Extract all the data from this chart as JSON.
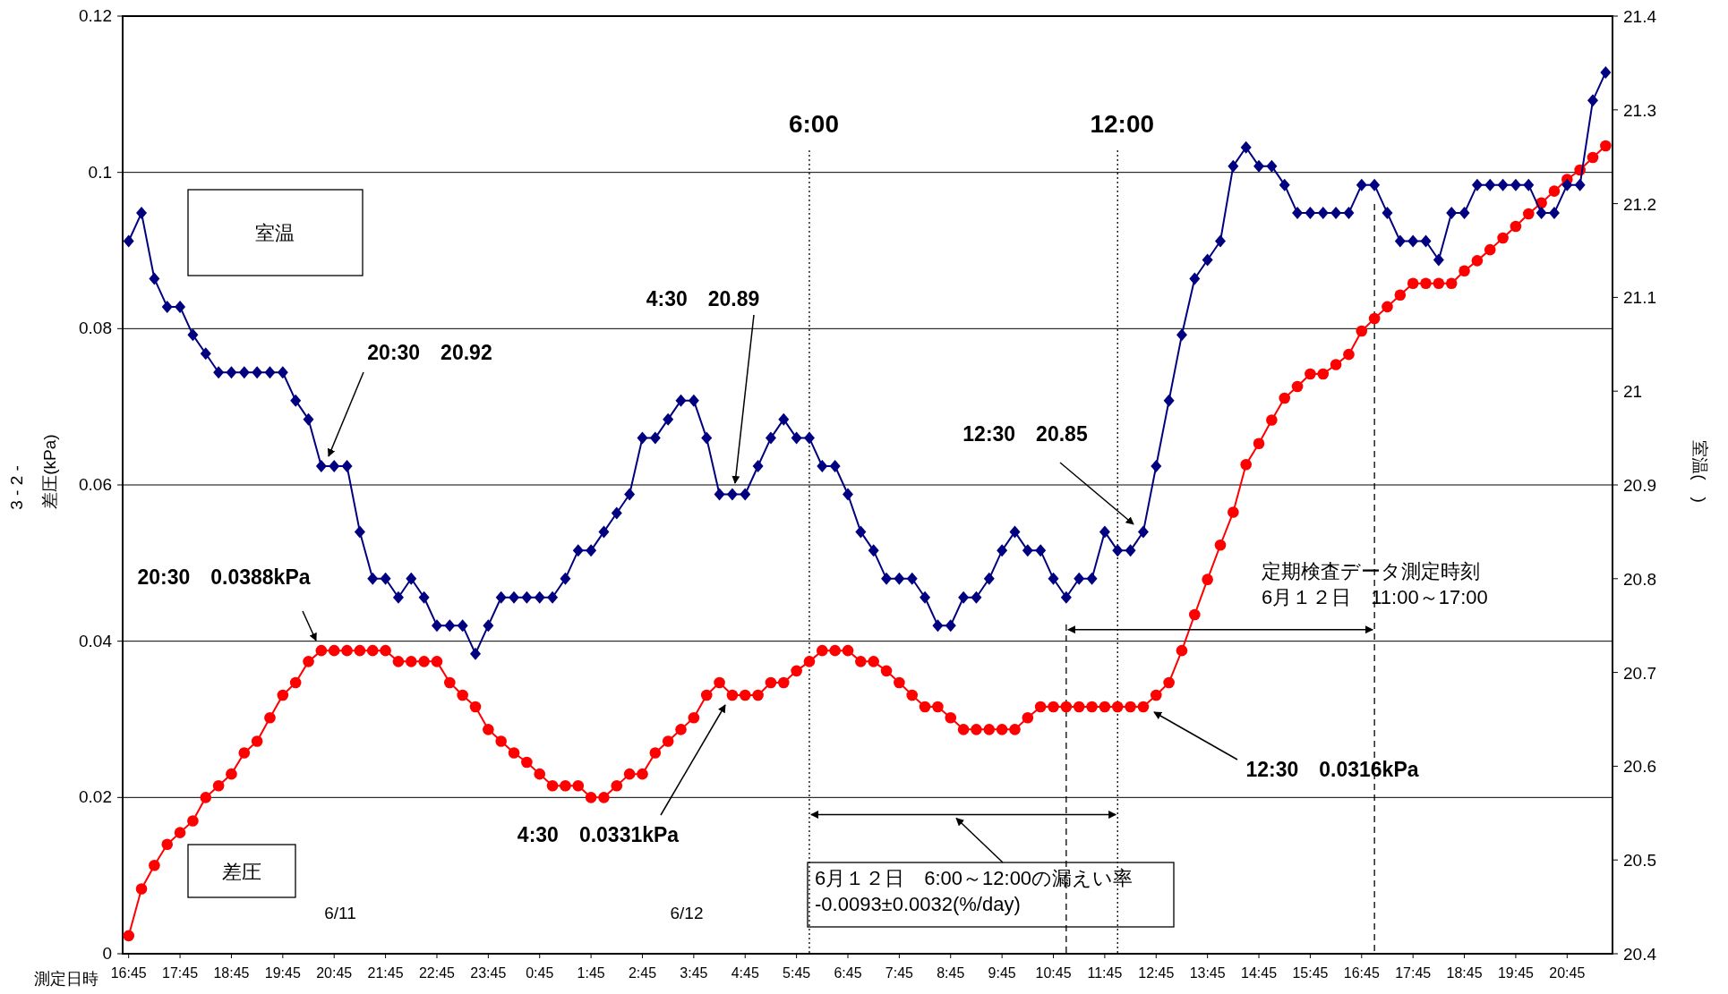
{
  "chart_data": {
    "type": "line",
    "xlabel": "測定日時",
    "ylabel": "差圧(kPa)",
    "y2label": "室温(　)",
    "x": [
      "--06-11T16:45",
      "--06-11T17:00",
      "--06-11T17:15",
      "--06-11T17:30",
      "--06-11T17:45",
      "--06-11T18:00",
      "--06-11T18:15",
      "--06-11T18:30",
      "--06-11T18:45",
      "--06-11T19:00",
      "--06-11T19:15",
      "--06-11T19:30",
      "--06-11T19:45",
      "--06-11T20:00",
      "--06-11T20:15",
      "--06-11T20:30",
      "--06-11T20:45",
      "--06-11T21:00",
      "--06-11T21:15",
      "--06-11T21:30",
      "--06-11T21:45",
      "--06-11T22:00",
      "--06-11T22:15",
      "--06-11T22:30",
      "--06-11T22:45",
      "--06-11T23:00",
      "--06-11T23:15",
      "--06-11T23:30",
      "--06-11T23:45",
      "--06-12T00:00",
      "--06-12T00:15",
      "--06-12T00:30",
      "--06-12T00:45",
      "--06-12T01:00",
      "--06-12T01:15",
      "--06-12T01:30",
      "--06-12T01:45",
      "--06-12T02:00",
      "--06-12T02:15",
      "--06-12T02:30",
      "--06-12T02:45",
      "--06-12T03:00",
      "--06-12T03:15",
      "--06-12T03:30",
      "--06-12T03:45",
      "--06-12T04:00",
      "--06-12T04:15",
      "--06-12T04:30",
      "--06-12T04:45",
      "--06-12T05:00",
      "--06-12T05:15",
      "--06-12T05:30",
      "--06-12T05:45",
      "--06-12T06:00",
      "--06-12T06:15",
      "--06-12T06:30",
      "--06-12T06:45",
      "--06-12T07:00",
      "--06-12T07:15",
      "--06-12T07:30",
      "--06-12T07:45",
      "--06-12T08:00",
      "--06-12T08:15",
      "--06-12T08:30",
      "--06-12T08:45",
      "--06-12T09:00",
      "--06-12T09:15",
      "--06-12T09:30",
      "--06-12T09:45",
      "--06-12T10:00",
      "--06-12T10:15",
      "--06-12T10:30",
      "--06-12T10:45",
      "--06-12T11:00",
      "--06-12T11:15",
      "--06-12T11:30",
      "--06-12T11:45",
      "--06-12T12:00",
      "--06-12T12:15",
      "--06-12T12:30",
      "--06-12T12:45",
      "--06-12T13:00",
      "--06-12T13:15",
      "--06-12T13:30",
      "--06-12T13:45",
      "--06-12T14:00",
      "--06-12T14:15",
      "--06-12T14:30",
      "--06-12T14:45",
      "--06-12T15:00",
      "--06-12T15:15",
      "--06-12T15:30",
      "--06-12T15:45",
      "--06-12T16:00",
      "--06-12T16:15",
      "--06-12T16:30",
      "--06-12T16:45",
      "--06-12T17:00",
      "--06-12T17:15",
      "--06-12T17:30",
      "--06-12T17:45",
      "--06-12T18:00",
      "--06-12T18:15",
      "--06-12T18:30",
      "--06-12T18:45",
      "--06-12T19:00",
      "--06-12T19:15",
      "--06-12T19:30",
      "--06-12T19:45",
      "--06-12T20:00",
      "--06-12T20:15",
      "--06-12T20:30",
      "--06-12T20:45",
      "--06-12T21:00",
      "--06-12T21:15",
      "--06-12T21:30"
    ],
    "xlim": [
      "--06-11T16:38",
      "--06-12T21:38"
    ],
    "xticks": [
      {
        "value": "--06-11T16:45",
        "label": "16:45"
      },
      {
        "value": "--06-11T17:45",
        "label": "17:45"
      },
      {
        "value": "--06-11T18:45",
        "label": "18:45"
      },
      {
        "value": "--06-11T19:45",
        "label": "19:45"
      },
      {
        "value": "--06-11T20:45",
        "label": "20:45"
      },
      {
        "value": "--06-11T21:45",
        "label": "21:45"
      },
      {
        "value": "--06-11T22:45",
        "label": "22:45"
      },
      {
        "value": "--06-11T23:45",
        "label": "23:45"
      },
      {
        "value": "--06-12T00:45",
        "label": "0:45"
      },
      {
        "value": "--06-12T01:45",
        "label": "1:45"
      },
      {
        "value": "--06-12T02:45",
        "label": "2:45"
      },
      {
        "value": "--06-12T03:45",
        "label": "3:45"
      },
      {
        "value": "--06-12T04:45",
        "label": "4:45"
      },
      {
        "value": "--06-12T05:45",
        "label": "5:45"
      },
      {
        "value": "--06-12T06:45",
        "label": "6:45"
      },
      {
        "value": "--06-12T07:45",
        "label": "7:45"
      },
      {
        "value": "--06-12T08:45",
        "label": "8:45"
      },
      {
        "value": "--06-12T09:45",
        "label": "9:45"
      },
      {
        "value": "--06-12T10:45",
        "label": "10:45"
      },
      {
        "value": "--06-12T11:45",
        "label": "11:45"
      },
      {
        "value": "--06-12T12:45",
        "label": "12:45"
      },
      {
        "value": "--06-12T13:45",
        "label": "13:45"
      },
      {
        "value": "--06-12T14:45",
        "label": "14:45"
      },
      {
        "value": "--06-12T15:45",
        "label": "15:45"
      },
      {
        "value": "--06-12T16:45",
        "label": "16:45"
      },
      {
        "value": "--06-12T17:45",
        "label": "17:45"
      },
      {
        "value": "--06-12T18:45",
        "label": "18:45"
      },
      {
        "value": "--06-12T19:45",
        "label": "19:45"
      },
      {
        "value": "--06-12T20:45",
        "label": "20:45"
      }
    ],
    "ylim": [
      0,
      0.12
    ],
    "yticks": [
      0,
      0.02,
      0.04,
      0.06,
      0.08,
      0.1,
      0.12
    ],
    "y2lim": [
      20.4,
      21.4
    ],
    "y2ticks": [
      20.4,
      20.5,
      20.6,
      20.7,
      20.8,
      20.9,
      21,
      21.1,
      21.2,
      21.3,
      21.4
    ],
    "grid": "y",
    "series": [
      {
        "color": "#ff0000",
        "marker": "circle",
        "values": [
          0.0023,
          0.0083,
          0.0113,
          0.014,
          0.0155,
          0.017,
          0.02,
          0.0215,
          0.023,
          0.0257,
          0.0272,
          0.0302,
          0.0331,
          0.0347,
          0.0374,
          0.0388,
          0.0388,
          0.0388,
          0.0388,
          0.0388,
          0.0388,
          0.0374,
          0.0374,
          0.0374,
          0.0374,
          0.0347,
          0.0331,
          0.0316,
          0.0287,
          0.0272,
          0.0257,
          0.0245,
          0.023,
          0.0215,
          0.0215,
          0.0215,
          0.02,
          0.02,
          0.0215,
          0.023,
          0.023,
          0.0257,
          0.0272,
          0.0287,
          0.0302,
          0.0331,
          0.0347,
          0.0331,
          0.0331,
          0.0331,
          0.0347,
          0.0347,
          0.0362,
          0.0374,
          0.0388,
          0.0388,
          0.0388,
          0.0374,
          0.0374,
          0.0362,
          0.0347,
          0.0331,
          0.0316,
          0.0316,
          0.0302,
          0.0287,
          0.0287,
          0.0287,
          0.0287,
          0.0287,
          0.0302,
          0.0316,
          0.0316,
          0.0316,
          0.0316,
          0.0316,
          0.0316,
          0.0316,
          0.0316,
          0.0316,
          0.0331,
          0.0347,
          0.0388,
          0.0434,
          0.0479,
          0.0523,
          0.0565,
          0.0626,
          0.0653,
          0.0683,
          0.0711,
          0.0726,
          0.0742,
          0.0742,
          0.0754,
          0.0767,
          0.0797,
          0.0813,
          0.0828,
          0.0843,
          0.0858,
          0.0858,
          0.0858,
          0.0858,
          0.0874,
          0.0887,
          0.0901,
          0.0916,
          0.0931,
          0.0947,
          0.0961,
          0.0976,
          0.0991,
          0.1003,
          0.1019,
          0.1034
        ]
      },
      {
        "color": "#000080",
        "marker": "diamond",
        "axis": "y2",
        "values": [
          21.16,
          21.19,
          21.12,
          21.09,
          21.09,
          21.06,
          21.04,
          21.02,
          21.02,
          21.02,
          21.02,
          21.02,
          21.02,
          20.99,
          20.97,
          20.92,
          20.92,
          20.92,
          20.85,
          20.8,
          20.8,
          20.78,
          20.8,
          20.78,
          20.75,
          20.75,
          20.75,
          20.72,
          20.75,
          20.78,
          20.78,
          20.78,
          20.78,
          20.78,
          20.8,
          20.83,
          20.83,
          20.85,
          20.87,
          20.89,
          20.95,
          20.95,
          20.97,
          20.99,
          20.99,
          20.95,
          20.89,
          20.89,
          20.89,
          20.92,
          20.95,
          20.97,
          20.95,
          20.95,
          20.92,
          20.92,
          20.89,
          20.85,
          20.83,
          20.8,
          20.8,
          20.8,
          20.78,
          20.75,
          20.75,
          20.78,
          20.78,
          20.8,
          20.83,
          20.85,
          20.83,
          20.83,
          20.8,
          20.78,
          20.8,
          20.8,
          20.85,
          20.83,
          20.83,
          20.85,
          20.92,
          20.99,
          21.06,
          21.12,
          21.14,
          21.16,
          21.24,
          21.26,
          21.24,
          21.24,
          21.22,
          21.19,
          21.19,
          21.19,
          21.19,
          21.19,
          21.22,
          21.22,
          21.19,
          21.16,
          21.16,
          21.16,
          21.14,
          21.19,
          21.19,
          21.22,
          21.22,
          21.22,
          21.22,
          21.22,
          21.19,
          21.19,
          21.22,
          21.22,
          21.31,
          21.34
        ]
      }
    ],
    "ref_lines": [
      {
        "axis": "x",
        "value": "--06-12T06:00",
        "label": "6:00",
        "line_style": "dotted",
        "color": "#000000"
      },
      {
        "axis": "x",
        "value": "--06-12T12:00",
        "label": "12:00",
        "line_style": "dotted",
        "color": "#000000"
      },
      {
        "axis": "x",
        "value": "--06-12T11:00",
        "line_style": "dashed",
        "color": "#000000"
      },
      {
        "axis": "x",
        "value": "--06-12T17:00",
        "line_style": "dashed",
        "color": "#000000"
      }
    ],
    "annotations": [
      "20:30　20.92",
      "4:30　20.89",
      "12:30　20.85",
      "20:30　0.0388kPa",
      "4:30　0.0331kPa",
      "12:30　0.0316kPa",
      "6/11",
      "6/12",
      "6月１２日　6:00～12:00の漏えい率\n-0.0093±0.0032(%/day)",
      "定期検査データ測定時刻\n6月１２日　11:00～17:00",
      "3 - 2 -",
      "室温",
      "差圧"
    ]
  }
}
